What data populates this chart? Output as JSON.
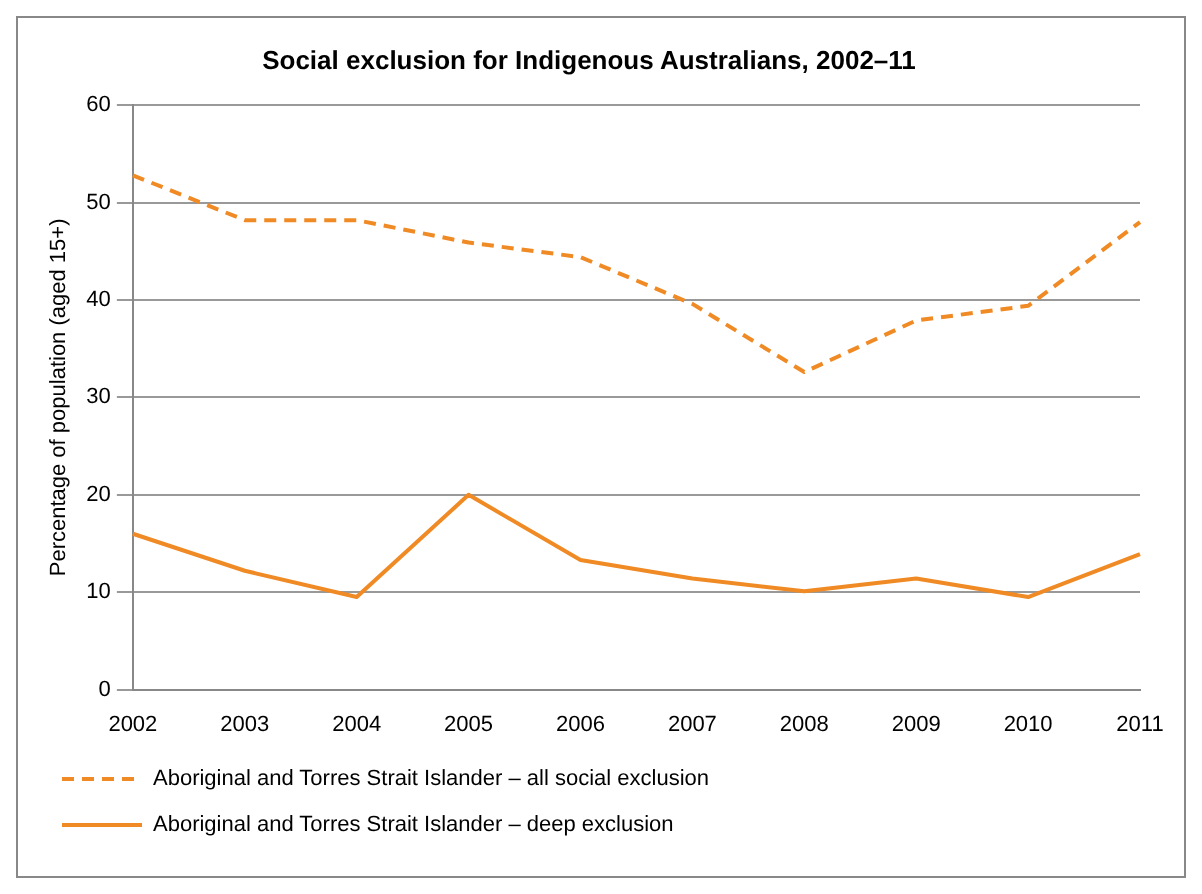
{
  "chart_data": {
    "type": "line",
    "title": "Social exclusion for Indigenous Australians, 2002–11",
    "ylabel": "Percentage of population (aged 15+)",
    "categories": [
      "2002",
      "2003",
      "2004",
      "2005",
      "2006",
      "2007",
      "2008",
      "2009",
      "2010",
      "2011"
    ],
    "ylim": [
      0,
      60
    ],
    "yticks": [
      0,
      10,
      20,
      30,
      40,
      50,
      60
    ],
    "grid": "y",
    "legend": "bottom",
    "marker": "none",
    "series": [
      {
        "name": "Aboriginal and Torres Strait Islander – all social exclusion",
        "color": "#f08a24",
        "line_style": "dashed",
        "values": [
          52.8,
          48.2,
          48.2,
          45.9,
          44.4,
          39.6,
          32.6,
          37.9,
          39.4,
          48
        ]
      },
      {
        "name": "Aboriginal and Torres Strait Islander – deep exclusion",
        "color": "#f08a24",
        "line_style": "solid",
        "values": [
          16,
          12.2,
          9.5,
          20,
          13.3,
          11.4,
          10.1,
          11.4,
          9.5,
          13.9
        ]
      }
    ]
  }
}
